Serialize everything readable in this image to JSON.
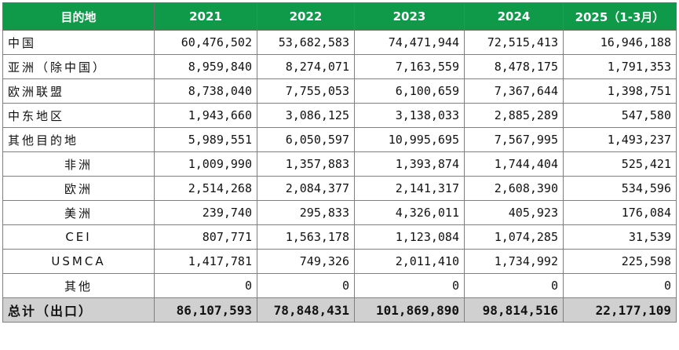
{
  "header": [
    "目的地",
    "2021",
    "2022",
    "2023",
    "2024",
    "2025（1-3月）"
  ],
  "rows": [
    {
      "label": "中国",
      "values": [
        "60,476,502",
        "53,682,583",
        "74,471,944",
        "72,515,413",
        "16,946,188"
      ]
    },
    {
      "label": "亚洲（除中国）",
      "values": [
        "8,959,840",
        "8,274,071",
        "7,163,559",
        "8,478,175",
        "1,791,353"
      ]
    },
    {
      "label": "欧洲联盟",
      "values": [
        "8,738,040",
        "7,755,053",
        "6,100,659",
        "7,367,644",
        "1,398,751"
      ]
    },
    {
      "label": "中东地区",
      "values": [
        "1,943,660",
        "3,086,125",
        "3,138,033",
        "2,885,289",
        "547,580"
      ]
    },
    {
      "label": "其他目的地",
      "values": [
        "5,989,551",
        "6,050,597",
        "10,995,695",
        "7,567,995",
        "1,493,237"
      ]
    },
    {
      "label": "非洲",
      "values": [
        "1,009,990",
        "1,357,883",
        "1,393,874",
        "1,744,404",
        "525,421"
      ]
    },
    {
      "label": "欧洲",
      "values": [
        "2,514,268",
        "2,084,377",
        "2,141,317",
        "2,608,390",
        "534,596"
      ]
    },
    {
      "label": "美洲",
      "values": [
        "239,740",
        "295,833",
        "4,326,011",
        "405,923",
        "176,084"
      ]
    },
    {
      "label": "CEI",
      "values": [
        "807,771",
        "1,563,178",
        "1,123,084",
        "1,074,285",
        "31,539"
      ]
    },
    {
      "label": "USMCA",
      "values": [
        "1,417,781",
        "749,326",
        "2,011,410",
        "1,734,992",
        "225,598"
      ]
    },
    {
      "label": "其他",
      "values": [
        "0",
        "0",
        "0",
        "0",
        "0"
      ]
    }
  ],
  "total": {
    "label": "总计（出口）",
    "values": [
      "86,107,593",
      "78,848,431",
      "101,869,890",
      "98,814,516",
      "22,177,109"
    ]
  }
}
